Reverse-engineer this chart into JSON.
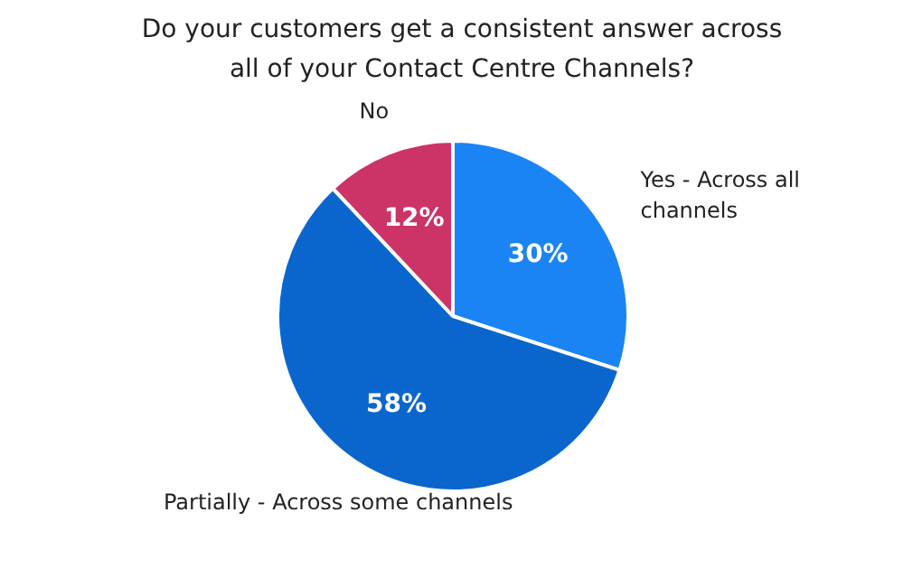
{
  "chart_data": {
    "type": "pie",
    "title": "Do your customers get a consistent answer across all of your Contact Centre Channels?",
    "categories": [
      "Yes - Across all channels",
      "Partially - Across some channels",
      "No"
    ],
    "values": [
      30,
      58,
      12
    ],
    "colors": [
      "#1a84f5",
      "#0a66cc",
      "#cc3366"
    ],
    "value_labels": [
      "30%",
      "58%",
      "12%"
    ]
  }
}
